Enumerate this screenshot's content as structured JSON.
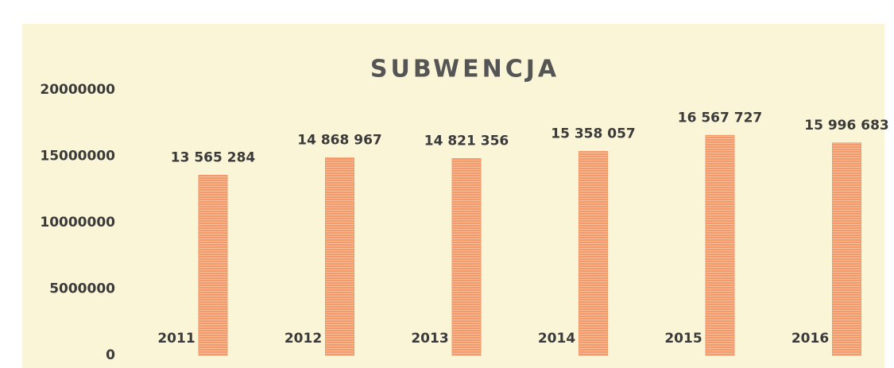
{
  "chart_data": {
    "type": "bar",
    "title": "SUBWENCJA",
    "categories": [
      "2011",
      "2012",
      "2013",
      "2014",
      "2015",
      "2016"
    ],
    "values": [
      13565284,
      14868967,
      14821356,
      15358057,
      16567727,
      15996683
    ],
    "value_labels": [
      "13 565 284",
      "14 868 967",
      "14 821 356",
      "15 358 057",
      "16 567 727",
      "15 996 683"
    ],
    "color": "#f4996a",
    "ylim": [
      0,
      20000000
    ],
    "yticks": [
      0,
      5000000,
      10000000,
      15000000,
      20000000
    ],
    "grid": false
  }
}
